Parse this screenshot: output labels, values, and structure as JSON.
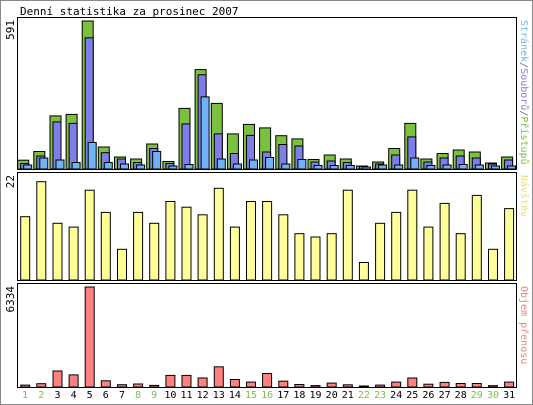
{
  "chart_data": {
    "type": "bar",
    "title": "Denní statistika za prosinec 2007",
    "categories": [
      "1",
      "2",
      "3",
      "4",
      "5",
      "6",
      "7",
      "8",
      "9",
      "10",
      "11",
      "12",
      "13",
      "14",
      "15",
      "16",
      "17",
      "18",
      "19",
      "20",
      "21",
      "22",
      "23",
      "24",
      "25",
      "26",
      "27",
      "28",
      "29",
      "30",
      "31"
    ],
    "weekend_days": [
      "1",
      "2",
      "8",
      "9",
      "15",
      "16",
      "22",
      "23",
      "29",
      "30"
    ],
    "panels": [
      {
        "id": "top",
        "ymax_label": "591",
        "ymax": 591,
        "legend": [
          {
            "text": "Stránek",
            "color": "#6fb3f5"
          },
          {
            "text": "/",
            "color": "#707070"
          },
          {
            "text": "Souborů",
            "color": "#7d7ee8"
          },
          {
            "text": "/",
            "color": "#707070"
          },
          {
            "text": "Přístupů",
            "color": "#7cc040"
          }
        ],
        "series": [
          {
            "name": "Přístupů",
            "color": "#7cc040",
            "values": [
              35,
              70,
              212,
              218,
              591,
              88,
              48,
              40,
              100,
              30,
              242,
              397,
              262,
              140,
              178,
              164,
              133,
              120,
              38,
              56,
              40,
              12,
              28,
              82,
              182,
              40,
              62,
              76,
              68,
              24,
              48
            ]
          },
          {
            "name": "Souborů",
            "color": "#7d7ee8",
            "values": [
              22,
              52,
              188,
              182,
              524,
              65,
              40,
              26,
              82,
              22,
              180,
              376,
              140,
              62,
              134,
              68,
              98,
              92,
              28,
              32,
              26,
              10,
              20,
              56,
              128,
              28,
              44,
              52,
              44,
              20,
              36
            ]
          },
          {
            "name": "Stránek",
            "color": "#6fb3f5",
            "values": [
              16,
              44,
              36,
              26,
              106,
              26,
              20,
              16,
              70,
              12,
              18,
              288,
              40,
              20,
              36,
              46,
              20,
              38,
              14,
              14,
              14,
              8,
              16,
              16,
              44,
              14,
              16,
              18,
              16,
              12,
              12
            ]
          }
        ]
      },
      {
        "id": "mid",
        "ymax_label": "22",
        "ymax": 22,
        "legend": [
          {
            "text": "Návštěv",
            "color": "#e6e26c"
          }
        ],
        "series": [
          {
            "name": "Návštěv",
            "color": "#ffff99",
            "values": [
              13.4,
              20.8,
              12,
              11.2,
              19,
              14.3,
              6.5,
              14.3,
              12,
              16.6,
              15.4,
              13.8,
              19.4,
              11.2,
              16.6,
              16.6,
              13.8,
              9.8,
              9.1,
              9.8,
              19,
              3.7,
              12,
              14.3,
              19,
              11.2,
              16.2,
              9.8,
              17.9,
              6.5,
              15.1
            ]
          }
        ]
      },
      {
        "id": "bot",
        "ymax_label": "6334",
        "ymax": 6334,
        "legend": [
          {
            "text": "Objem přenosu",
            "color": "#f08080"
          }
        ],
        "series": [
          {
            "name": "Objem přenosu",
            "color": "#ff8080",
            "values": [
              120,
              208,
              1012,
              768,
              6334,
              395,
              148,
              190,
              100,
              735,
              735,
              572,
              1281,
              474,
              313,
              857,
              366,
              161,
              91,
              245,
              140,
              54,
              119,
              308,
              571,
              175,
              291,
              219,
              223,
              83,
              308
            ]
          }
        ]
      }
    ]
  }
}
